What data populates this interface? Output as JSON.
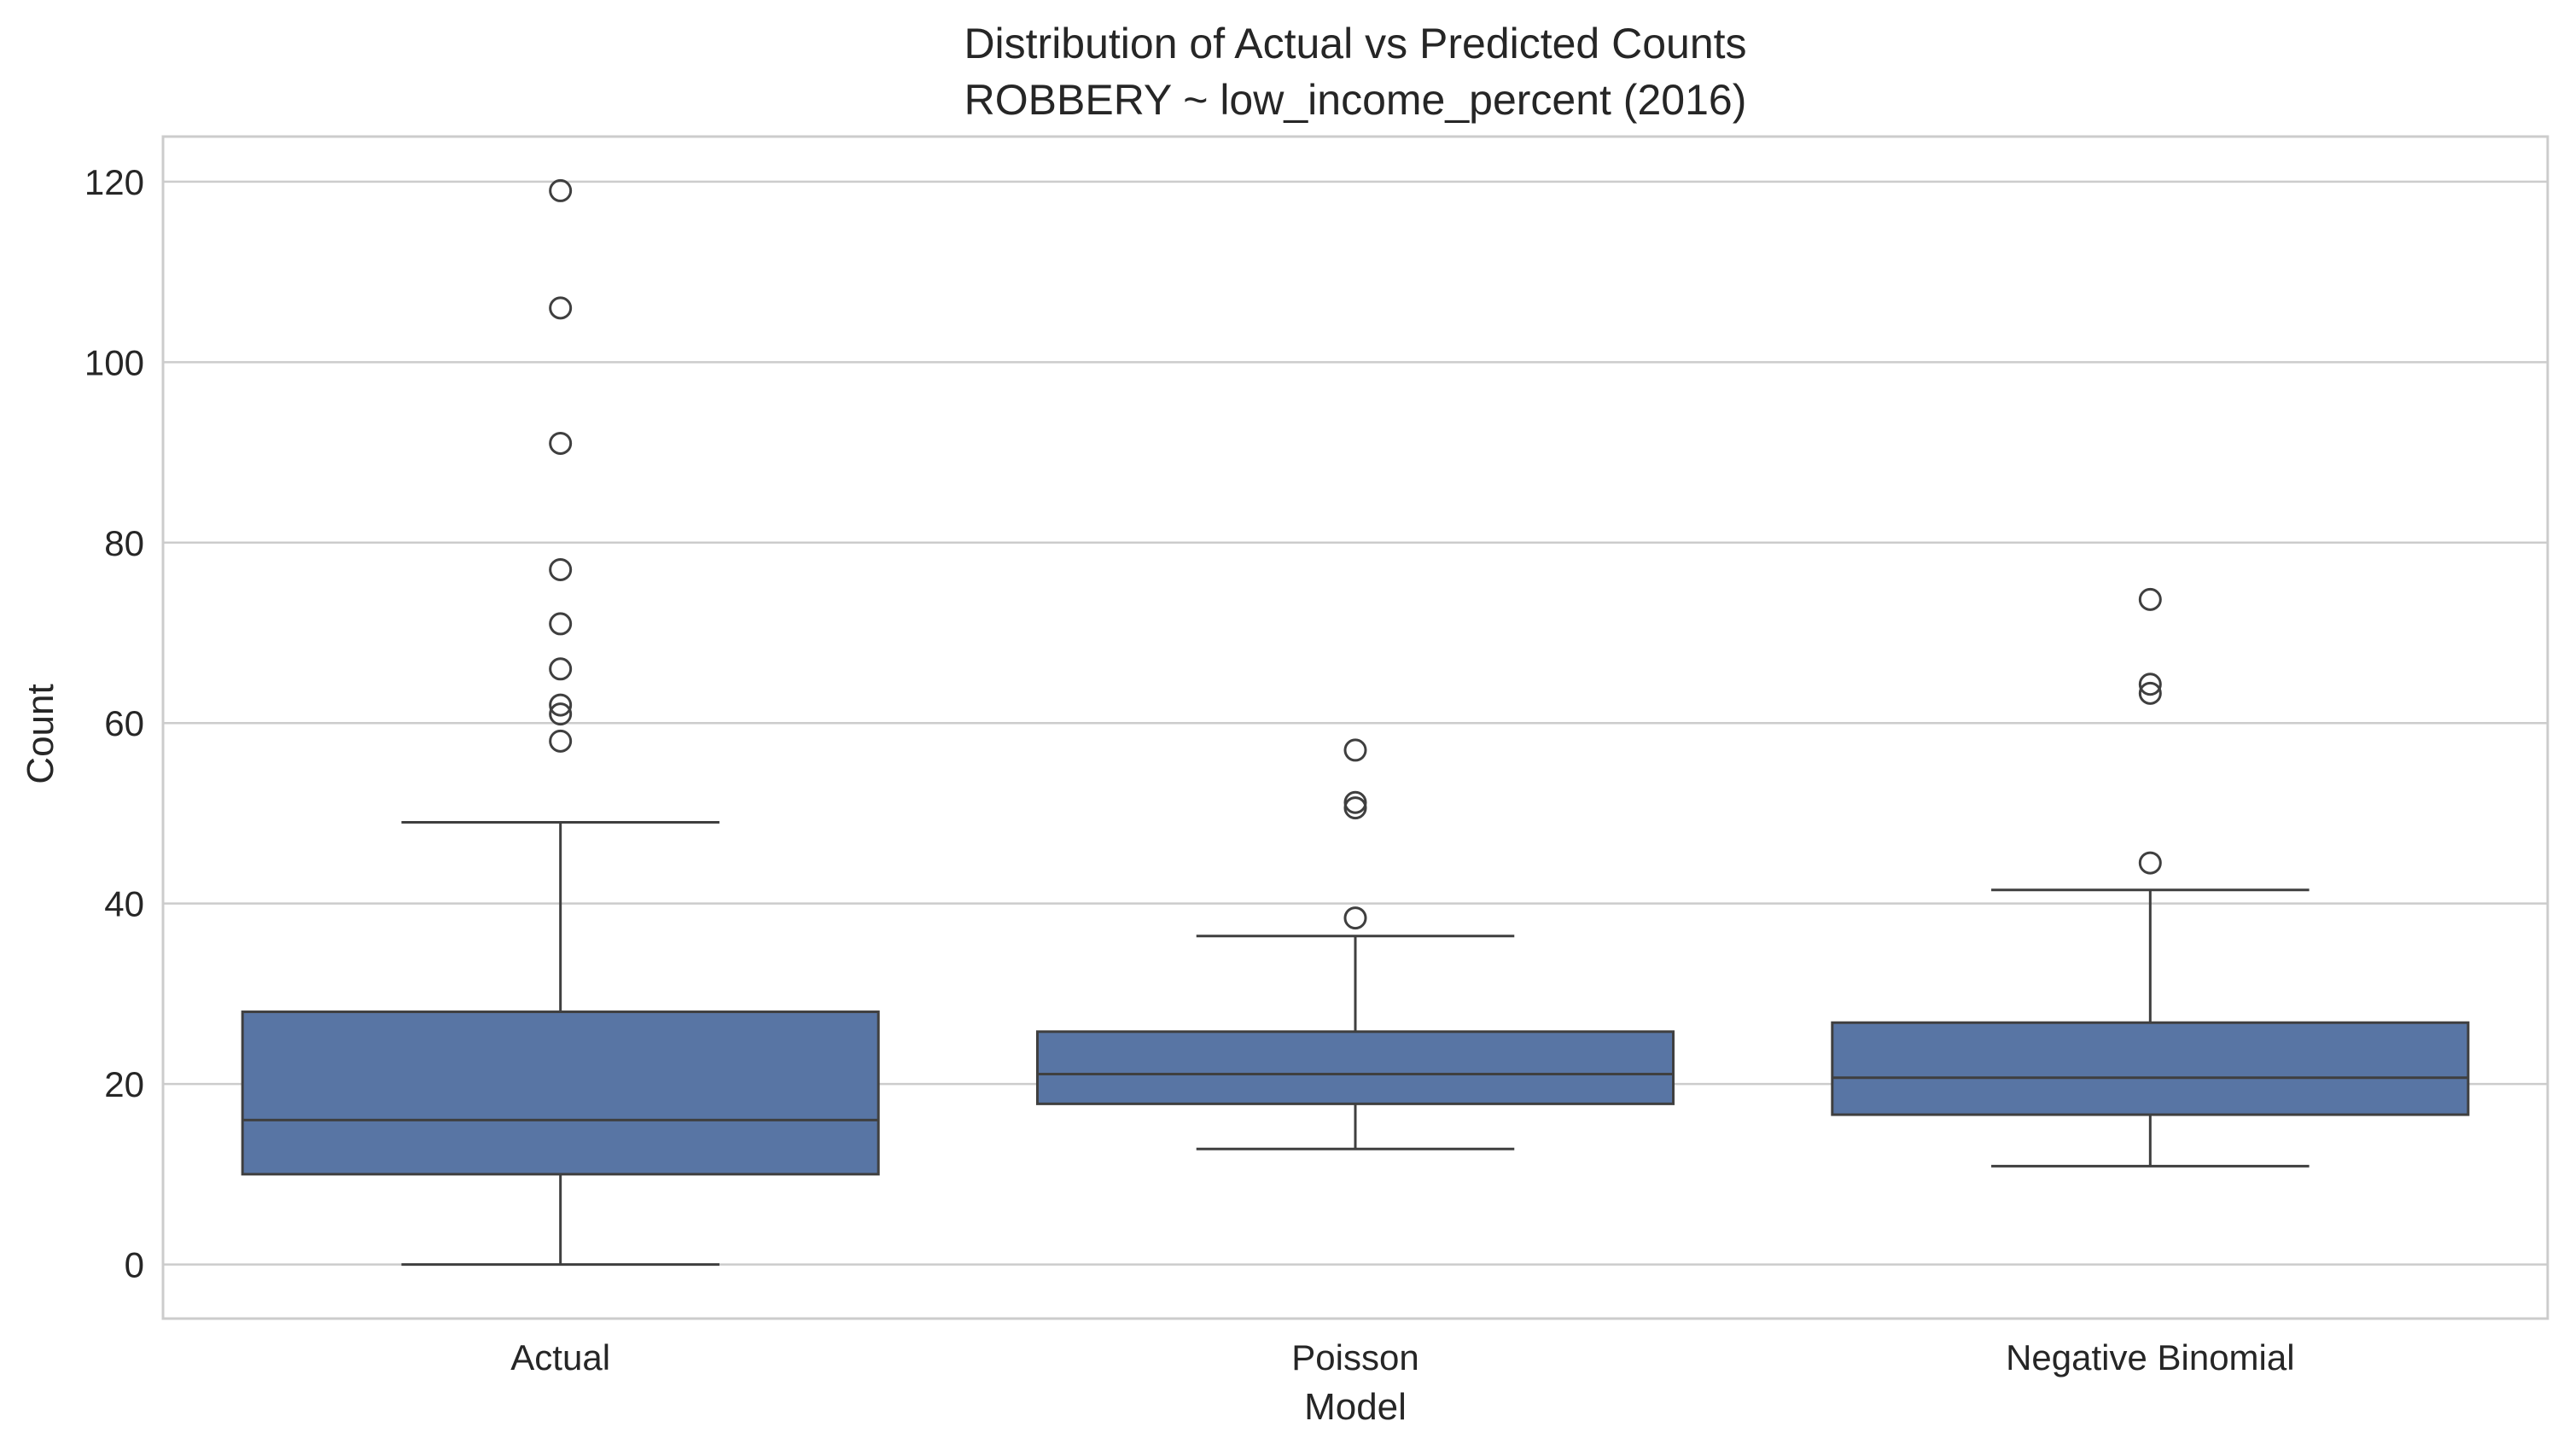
{
  "chart_data": {
    "type": "box",
    "title": "Distribution of Actual vs Predicted Counts",
    "subtitle": "ROBBERY ~ low_income_percent (2016)",
    "xlabel": "Model",
    "ylabel": "Count",
    "ylim": [
      -6,
      125
    ],
    "yticks": [
      0,
      20,
      40,
      60,
      80,
      100,
      120
    ],
    "grid": true,
    "box_color": "#5875a4",
    "line_color": "#3f3f3f",
    "categories": [
      "Actual",
      "Poisson",
      "Negative Binomial"
    ],
    "boxes": [
      {
        "name": "Actual",
        "whisker_low": 0,
        "q1": 10,
        "median": 16,
        "q3": 28,
        "whisker_high": 49,
        "outliers": [
          58,
          61,
          62,
          66,
          71,
          77,
          91,
          106,
          119
        ]
      },
      {
        "name": "Poisson",
        "whisker_low": 12.8,
        "q1": 17.8,
        "median": 21.1,
        "q3": 25.8,
        "whisker_high": 36.4,
        "outliers": [
          38.4,
          50.6,
          51.2,
          57.0
        ]
      },
      {
        "name": "Negative Binomial",
        "whisker_low": 10.9,
        "q1": 16.6,
        "median": 20.7,
        "q3": 26.8,
        "whisker_high": 41.5,
        "outliers": [
          44.5,
          63.3,
          64.3,
          73.7
        ]
      }
    ]
  }
}
